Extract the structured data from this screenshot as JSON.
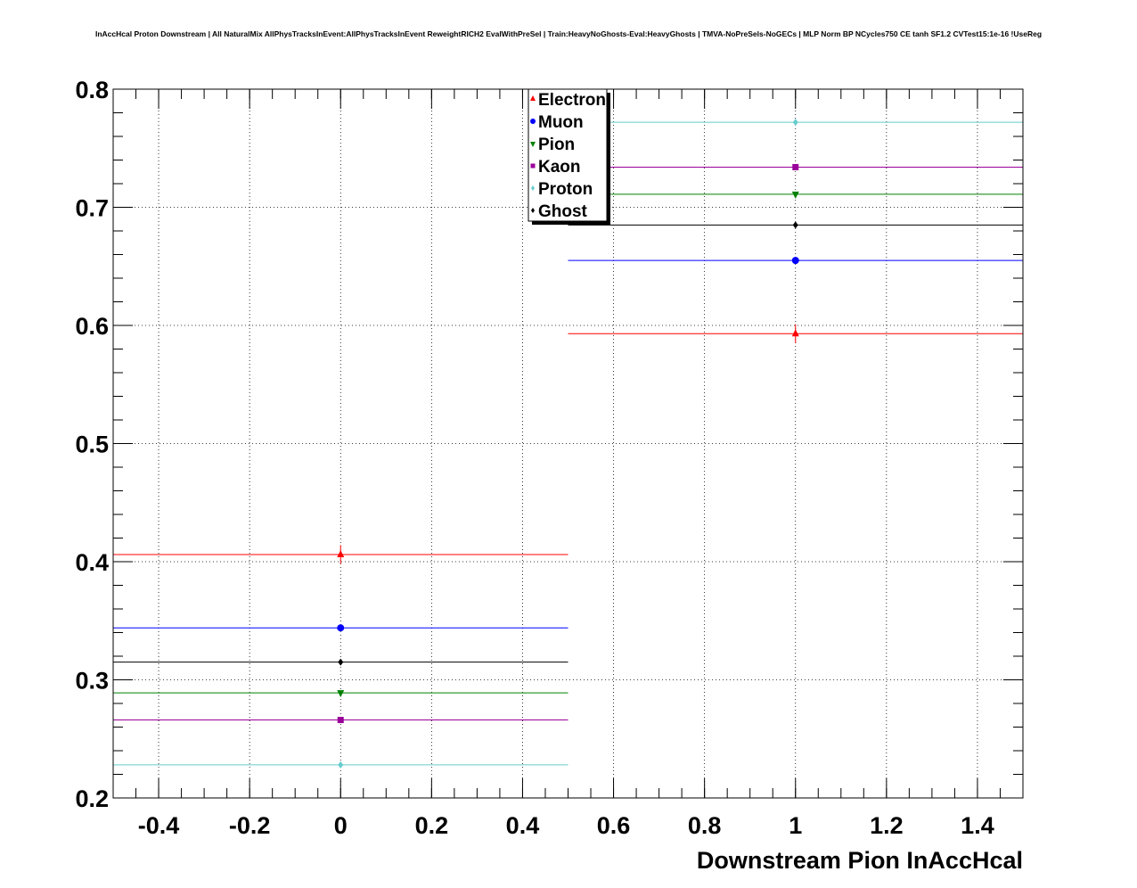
{
  "chart_data": {
    "type": "scatter",
    "title": "InAccHcal Proton Downstream | All NaturalMix AllPhysTracksInEvent:AllPhysTracksInEvent ReweightRICH2 EvalWithPreSel | Train:HeavyNoGhosts-Eval:HeavyGhosts | TMVA-NoPreSels-NoGECs | MLP Norm BP NCycles750 CE tanh SF1.2 CVTest15:1e-16 !UseReg",
    "xlabel": "Downstream Pion InAccHcal",
    "ylabel": "",
    "xlim": [
      -0.5,
      1.5
    ],
    "ylim": [
      0.2,
      0.8
    ],
    "xticks": [
      "-0.4",
      "-0.2",
      "0",
      "0.2",
      "0.4",
      "0.6",
      "0.8",
      "1",
      "1.2",
      "1.4"
    ],
    "xtick_values": [
      -0.4,
      -0.2,
      0,
      0.2,
      0.4,
      0.6,
      0.8,
      1,
      1.2,
      1.4
    ],
    "yticks": [
      "0.2",
      "0.3",
      "0.4",
      "0.5",
      "0.6",
      "0.7",
      "0.8"
    ],
    "ytick_values": [
      0.2,
      0.3,
      0.4,
      0.5,
      0.6,
      0.7,
      0.8
    ],
    "grid": true,
    "legend_position": "top-center",
    "bins": [
      {
        "x": 0,
        "xlow": -0.5,
        "xhigh": 0.5
      },
      {
        "x": 1,
        "xlow": 0.5,
        "xhigh": 1.5
      }
    ],
    "series": [
      {
        "name": "Electron",
        "color": "#ff0000",
        "marker": "triangle-up",
        "values": [
          0.406,
          0.593
        ],
        "errors": [
          0.008,
          0.008
        ]
      },
      {
        "name": "Muon",
        "color": "#0000ff",
        "marker": "circle",
        "values": [
          0.344,
          0.655
        ],
        "errors": [
          0.002,
          0.002
        ]
      },
      {
        "name": "Pion",
        "color": "#008000",
        "marker": "triangle-down",
        "values": [
          0.289,
          0.711
        ],
        "errors": [
          0.002,
          0.002
        ]
      },
      {
        "name": "Kaon",
        "color": "#990099",
        "marker": "square",
        "values": [
          0.266,
          0.734
        ],
        "errors": [
          0.002,
          0.002
        ]
      },
      {
        "name": "Proton",
        "color": "#66cccc",
        "marker": "diamond",
        "values": [
          0.228,
          0.772
        ],
        "errors": [
          0.002,
          0.002
        ]
      },
      {
        "name": "Ghost",
        "color": "#000000",
        "marker": "diamond",
        "values": [
          0.315,
          0.685
        ],
        "errors": [
          0.001,
          0.001
        ]
      }
    ]
  }
}
